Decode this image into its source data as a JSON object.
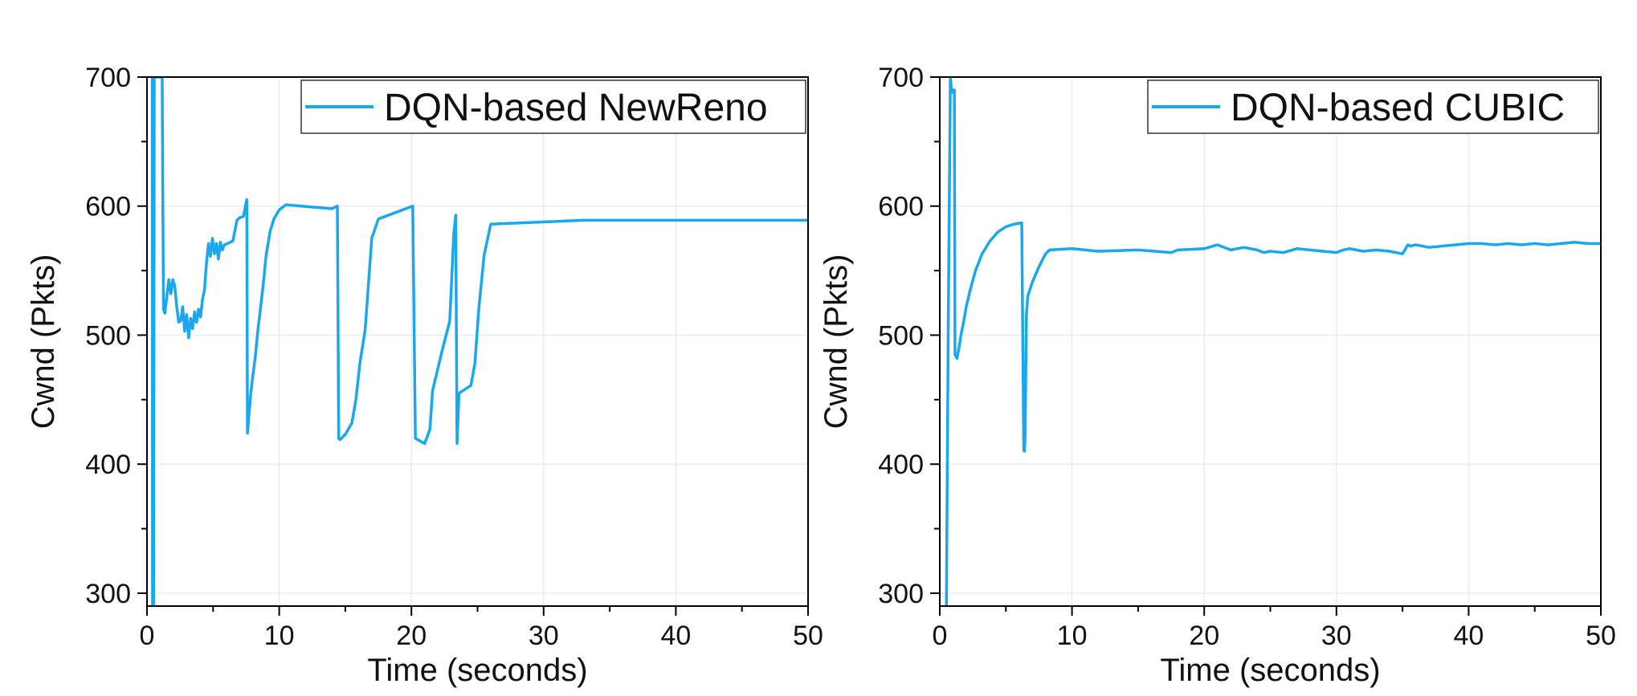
{
  "colors": {
    "series": "#1aa7ec",
    "axis": "#000000",
    "grid": "#ebebeb"
  },
  "chart_data": [
    {
      "type": "line",
      "xlabel": "Time (seconds)",
      "ylabel": "Cwnd (Pkts)",
      "xlim": [
        0,
        50
      ],
      "ylim": [
        290,
        700
      ],
      "xticks": [
        0,
        10,
        20,
        30,
        40,
        50
      ],
      "yticks": [
        300,
        400,
        500,
        600,
        700
      ],
      "grid": true,
      "legend_position": "top-right",
      "series": [
        {
          "name": "DQN-based NewReno",
          "x": [
            0.4,
            0.42,
            0.5,
            0.55,
            1.15,
            1.2,
            1.25,
            1.35,
            1.5,
            1.65,
            1.8,
            1.95,
            2.1,
            2.25,
            2.4,
            2.55,
            2.7,
            2.85,
            3.0,
            3.15,
            3.3,
            3.45,
            3.6,
            3.75,
            3.9,
            4.05,
            4.2,
            4.35,
            4.5,
            4.65,
            4.8,
            4.95,
            5.1,
            5.25,
            5.4,
            5.55,
            5.7,
            5.85,
            6.1,
            6.5,
            6.8,
            7.0,
            7.3,
            7.5,
            7.55,
            7.6,
            7.7,
            7.85,
            8.0,
            8.2,
            8.4,
            8.6,
            8.8,
            9.0,
            9.3,
            9.6,
            10.0,
            10.5,
            14.0,
            14.4,
            14.5,
            14.6,
            15.0,
            15.5,
            15.8,
            16.1,
            16.5,
            17.0,
            17.5,
            20.1,
            20.3,
            21.0,
            21.4,
            21.6,
            22.3,
            22.9,
            23.2,
            23.35,
            23.45,
            23.6,
            24.5,
            24.8,
            25.1,
            25.5,
            26.0,
            33.0,
            40.0,
            50.0
          ],
          "y": [
            700,
            290,
            290,
            700,
            700,
            600,
            520,
            517,
            530,
            543,
            532,
            543,
            538,
            522,
            510,
            511,
            522,
            503,
            516,
            498,
            513,
            505,
            518,
            510,
            520,
            514,
            528,
            535,
            556,
            571,
            561,
            575,
            563,
            571,
            559,
            572,
            566,
            570,
            571,
            573,
            589,
            591,
            592,
            603,
            605,
            424,
            437,
            455,
            468,
            484,
            505,
            522,
            540,
            561,
            580,
            590,
            597,
            601,
            598,
            600,
            420,
            419,
            423,
            432,
            450,
            478,
            504,
            575,
            590,
            600,
            420,
            416,
            427,
            457,
            487,
            511,
            578,
            593,
            416,
            455,
            461,
            478,
            521,
            562,
            586,
            589,
            589,
            589
          ]
        }
      ]
    },
    {
      "type": "line",
      "xlabel": "Time (seconds)",
      "ylabel": "Cwnd (Pkts)",
      "xlim": [
        0,
        50
      ],
      "ylim": [
        290,
        700
      ],
      "xticks": [
        0,
        10,
        20,
        30,
        40,
        50
      ],
      "yticks": [
        300,
        400,
        500,
        600,
        700
      ],
      "grid": true,
      "legend_position": "top-right",
      "series": [
        {
          "name": "DQN-based CUBIC",
          "x": [
            0.45,
            0.5,
            0.55,
            0.65,
            0.8,
            0.9,
            1.0,
            1.1,
            1.15,
            1.3,
            1.45,
            1.6,
            1.8,
            2.0,
            2.3,
            2.7,
            3.2,
            3.8,
            4.4,
            5.0,
            5.6,
            6.2,
            6.35,
            6.4,
            6.45,
            6.55,
            6.65,
            7.0,
            7.5,
            8.0,
            8.3,
            10.0,
            12.0,
            15.0,
            17.5,
            18.0,
            20.0,
            21.0,
            21.5,
            22.0,
            23.0,
            24.0,
            24.5,
            25.0,
            26.0,
            27.0,
            28.0,
            29.0,
            30.0,
            30.5,
            31.0,
            32.0,
            33.0,
            34.0,
            35.0,
            35.4,
            35.6,
            36.0,
            37.0,
            38.0,
            39.0,
            40.0,
            41.0,
            42.0,
            43.0,
            44.0,
            45.0,
            46.0,
            47.0,
            48.0,
            49.0,
            50.0
          ],
          "y": [
            290,
            290,
            370,
            520,
            700,
            688,
            690,
            690,
            485,
            482,
            490,
            500,
            510,
            522,
            535,
            550,
            563,
            573,
            580,
            584,
            586,
            587,
            411,
            410,
            420,
            515,
            530,
            541,
            553,
            563,
            566,
            567,
            565,
            566,
            564,
            566,
            567,
            570,
            568,
            566,
            568,
            566,
            564,
            565,
            564,
            567,
            566,
            565,
            564,
            566,
            567,
            565,
            566,
            565,
            563,
            570,
            569,
            570,
            568,
            569,
            570,
            571,
            571,
            570,
            571,
            570,
            571,
            570,
            571,
            572,
            571,
            571
          ]
        }
      ]
    }
  ]
}
